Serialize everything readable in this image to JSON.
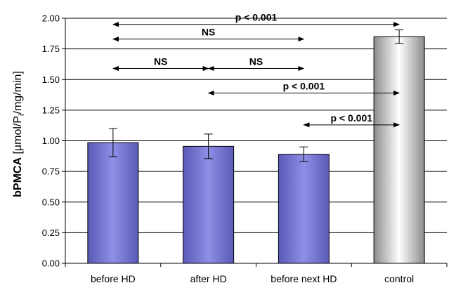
{
  "chart_data": {
    "type": "bar",
    "categories": [
      "before HD",
      "after HD",
      "before next HD",
      "control"
    ],
    "values": [
      0.985,
      0.955,
      0.89,
      1.85
    ],
    "errors": [
      0.115,
      0.1,
      0.06,
      0.055
    ],
    "ylabel": {
      "bold": "bPMCA",
      "unit_pre": " [µmol/P",
      "unit_sub": "i",
      "unit_post": "/mg/min]"
    },
    "ylim": [
      0,
      2.0
    ],
    "yticks": [
      "0.00",
      "0.25",
      "0.50",
      "0.75",
      "1.00",
      "1.25",
      "1.50",
      "1.75",
      "2.00"
    ],
    "grid": true,
    "colors": {
      "bar": "#8f8fe6",
      "bar_dark": "#5a5ab8",
      "control": "#d9d9d9",
      "control_dark": "#8c8c8c"
    },
    "annotations": [
      {
        "text": "p < 0.001",
        "from": 0,
        "to": 3,
        "y": 1.95
      },
      {
        "text": "NS",
        "from": 0,
        "to": 2,
        "y": 1.83
      },
      {
        "text": "NS",
        "from": 0,
        "to": 1,
        "y": 1.59
      },
      {
        "text": "NS",
        "from": 1,
        "to": 2,
        "y": 1.59
      },
      {
        "text": "p < 0.001",
        "from": 1,
        "to": 3,
        "y": 1.39
      },
      {
        "text": "p < 0.001",
        "from": 2,
        "to": 3,
        "y": 1.13
      }
    ]
  }
}
